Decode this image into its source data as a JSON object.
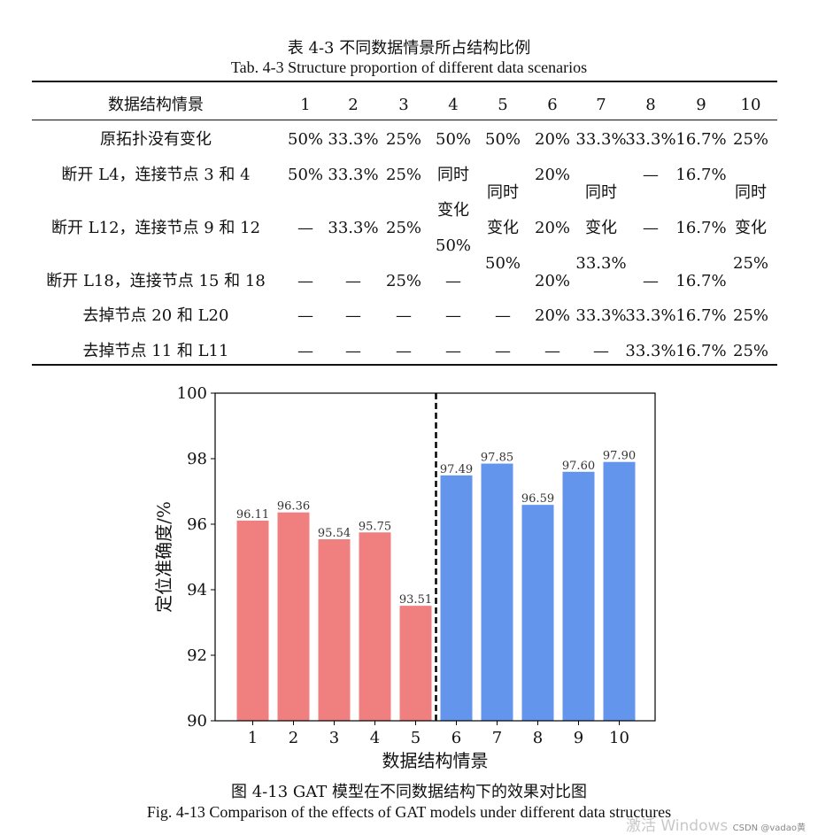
{
  "table": {
    "caption_zh": "表 4-3  不同数据情景所占结构比例",
    "caption_en": "Tab. 4-3 Structure proportion of different data scenarios",
    "header_label": "数据结构情景",
    "columns": [
      "1",
      "2",
      "3",
      "4",
      "5",
      "6",
      "7",
      "8",
      "9",
      "10"
    ],
    "row_labels": [
      "原拓扑没有变化",
      "断开 L4，连接节点 3 和 4",
      "断开 L12，连接节点 9 和 12",
      "断开 L18，连接节点 15 和 18",
      "去掉节点 20 和 L20",
      "去掉节点 11 和 L11"
    ],
    "rows": [
      [
        "50%",
        "33.3%",
        "25%",
        "50%",
        "50%",
        "20%",
        "33.3%",
        "33.3%",
        "16.7%",
        "25%"
      ],
      [
        "50%",
        "33.3%",
        "25%",
        "",
        "",
        "20%",
        "",
        "—",
        "16.7%",
        ""
      ],
      [
        "—",
        "33.3%",
        "25%",
        "",
        "",
        "20%",
        "",
        "—",
        "16.7%",
        ""
      ],
      [
        "—",
        "—",
        "25%",
        "—",
        "",
        "20%",
        "",
        "—",
        "16.7%",
        ""
      ],
      [
        "—",
        "—",
        "—",
        "—",
        "—",
        "20%",
        "33.3%",
        "33.3%",
        "16.7%",
        "25%"
      ],
      [
        "—",
        "—",
        "—",
        "—",
        "—",
        "—",
        "—",
        "33.3%",
        "16.7%",
        "25%"
      ]
    ],
    "merged": {
      "col4": [
        "同时",
        "变化",
        "50%"
      ],
      "col5": [
        "同时",
        "变化",
        "50%"
      ],
      "col7": [
        "同时",
        "变化",
        "33.3%"
      ],
      "col10": [
        "同时",
        "变化",
        "25%"
      ]
    }
  },
  "chart_data": {
    "type": "bar",
    "categories": [
      "1",
      "2",
      "3",
      "4",
      "5",
      "6",
      "7",
      "8",
      "9",
      "10"
    ],
    "values": [
      96.11,
      96.36,
      95.54,
      95.75,
      93.51,
      97.49,
      97.85,
      96.59,
      97.6,
      97.9
    ],
    "value_labels": [
      "96.11",
      "96.36",
      "95.54",
      "95.75",
      "93.51",
      "97.49",
      "97.85",
      "96.59",
      "97.60",
      "97.90"
    ],
    "bar_colors": [
      "#f08080",
      "#f08080",
      "#f08080",
      "#f08080",
      "#f08080",
      "#6495ed",
      "#6495ed",
      "#6495ed",
      "#6495ed",
      "#6495ed"
    ],
    "ylim": [
      90,
      100
    ],
    "yticks": [
      "90",
      "92",
      "94",
      "96",
      "98",
      "100"
    ],
    "xlabel": "数据结构情景",
    "ylabel": "定位准确度/%",
    "divider_after_category": "5",
    "grid": false
  },
  "figure": {
    "caption_zh": "图 4-13 GAT 模型在不同数据结构下的效果对比图",
    "caption_en": "Fig. 4-13 Comparison of the effects of GAT models under different data structures"
  },
  "watermark": {
    "text": "激活 Windows",
    "source": "CSDN @vadao黄"
  }
}
